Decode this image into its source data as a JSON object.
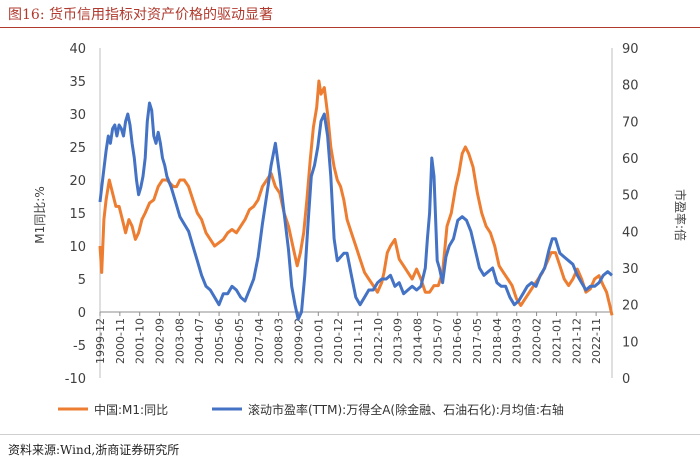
{
  "figure": {
    "title": "图16:  货币信用指标对资产价格的驱动显著",
    "source": "资料来源:Wind,浙商证券研究所"
  },
  "colors": {
    "m1": "#ED7D31",
    "pe": "#4472C4",
    "title": "#b03a2e",
    "axis": "#595959"
  },
  "chart_data": {
    "type": "line",
    "title": "",
    "ylabel": "M1同比:%",
    "y2label": "市盈率:倍",
    "ylim": [
      -10,
      40
    ],
    "y2lim": [
      0,
      90
    ],
    "yticks": [
      "-10",
      "-5",
      "0",
      "5",
      "10",
      "15",
      "20",
      "25",
      "30",
      "35",
      "40"
    ],
    "y2ticks": [
      "0",
      "10",
      "20",
      "30",
      "40",
      "50",
      "60",
      "70",
      "80",
      "90"
    ],
    "xlim": [
      1999.92,
      2023.5
    ],
    "xtick_labels": [
      "1999-12",
      "2000-11",
      "2001-10",
      "2002-09",
      "2003-08",
      "2004-07",
      "2005-06",
      "2006-05",
      "2007-04",
      "2008-03",
      "2009-02",
      "2010-01",
      "2010-12",
      "2011-11",
      "2012-10",
      "2013-09",
      "2014-08",
      "2015-07",
      "2016-06",
      "2017-05",
      "2018-04",
      "2019-03",
      "2020-02",
      "2021-01",
      "2021-12",
      "2022-11"
    ],
    "legend_position": "bottom",
    "series": [
      {
        "name": "中国:M1:同比",
        "axis": "left",
        "x": [
          1999.92,
          2000.0,
          2000.1,
          2000.2,
          2000.35,
          2000.5,
          2000.65,
          2000.8,
          2000.95,
          2001.1,
          2001.25,
          2001.4,
          2001.55,
          2001.7,
          2001.85,
          2002.0,
          2002.2,
          2002.4,
          2002.6,
          2002.8,
          2003.0,
          2003.15,
          2003.3,
          2003.45,
          2003.6,
          2003.8,
          2004.0,
          2004.2,
          2004.4,
          2004.6,
          2004.8,
          2005.0,
          2005.2,
          2005.4,
          2005.6,
          2005.8,
          2006.0,
          2006.2,
          2006.4,
          2006.6,
          2006.8,
          2007.0,
          2007.2,
          2007.4,
          2007.6,
          2007.8,
          2008.0,
          2008.2,
          2008.4,
          2008.6,
          2008.8,
          2009.0,
          2009.15,
          2009.3,
          2009.45,
          2009.6,
          2009.75,
          2009.9,
          2010.0,
          2010.1,
          2010.25,
          2010.4,
          2010.55,
          2010.7,
          2010.85,
          2011.0,
          2011.15,
          2011.3,
          2011.5,
          2011.7,
          2011.9,
          2012.1,
          2012.3,
          2012.5,
          2012.7,
          2012.9,
          2013.0,
          2013.15,
          2013.3,
          2013.5,
          2013.7,
          2013.9,
          2014.1,
          2014.3,
          2014.5,
          2014.7,
          2014.9,
          2015.1,
          2015.3,
          2015.5,
          2015.7,
          2015.9,
          2016.1,
          2016.3,
          2016.45,
          2016.6,
          2016.75,
          2016.9,
          2017.1,
          2017.3,
          2017.5,
          2017.7,
          2017.9,
          2018.1,
          2018.3,
          2018.5,
          2018.7,
          2018.9,
          2019.1,
          2019.3,
          2019.5,
          2019.7,
          2019.9,
          2020.1,
          2020.3,
          2020.5,
          2020.7,
          2020.9,
          2021.1,
          2021.3,
          2021.5,
          2021.7,
          2021.9,
          2022.1,
          2022.3,
          2022.5,
          2022.7,
          2022.9,
          2023.1,
          2023.25,
          2023.4,
          2023.5
        ],
        "values": [
          10,
          6,
          14,
          17,
          20,
          18,
          16,
          16,
          14,
          12,
          14,
          13,
          11,
          12,
          14,
          15,
          16.5,
          17,
          19,
          20,
          20,
          19.5,
          19,
          19,
          20,
          20,
          19,
          17,
          15,
          14,
          12,
          11,
          10,
          10.5,
          11,
          12,
          12.5,
          12,
          13,
          14,
          15.5,
          16,
          17,
          19,
          20,
          21,
          19,
          18,
          15,
          13,
          10,
          7,
          9,
          12,
          17,
          23,
          28,
          31,
          35,
          33,
          34,
          30,
          25,
          22,
          20,
          19,
          17,
          14,
          12,
          10,
          8,
          6,
          5,
          4,
          3,
          4.5,
          6,
          9,
          10,
          11,
          8,
          7,
          6,
          5,
          6.5,
          5,
          3,
          3,
          4,
          4,
          6,
          13,
          15,
          19,
          21,
          24,
          25,
          24,
          22,
          18,
          15,
          13,
          12,
          10,
          7,
          6,
          5,
          4,
          2,
          1,
          2,
          3,
          4,
          5,
          6,
          7.5,
          9,
          9,
          7,
          5,
          4,
          5,
          6.5,
          5,
          3,
          3.5,
          5,
          5.5,
          4,
          3,
          1,
          -0.5
        ]
      },
      {
        "name": "滚动市盈率(TTM):万得全A(除金融、石油石化):月均值:右轴",
        "axis": "right",
        "x": [
          1999.92,
          2000.0,
          2000.1,
          2000.2,
          2000.3,
          2000.4,
          2000.5,
          2000.6,
          2000.7,
          2000.8,
          2000.9,
          2001.0,
          2001.1,
          2001.2,
          2001.3,
          2001.4,
          2001.5,
          2001.6,
          2001.7,
          2001.8,
          2001.9,
          2002.0,
          2002.1,
          2002.2,
          2002.3,
          2002.4,
          2002.5,
          2002.6,
          2002.7,
          2002.8,
          2002.9,
          2003.0,
          2003.2,
          2003.4,
          2003.6,
          2003.8,
          2004.0,
          2004.2,
          2004.4,
          2004.6,
          2004.8,
          2005.0,
          2005.2,
          2005.4,
          2005.6,
          2005.8,
          2006.0,
          2006.2,
          2006.4,
          2006.6,
          2006.8,
          2007.0,
          2007.2,
          2007.4,
          2007.6,
          2007.8,
          2008.0,
          2008.2,
          2008.4,
          2008.6,
          2008.75,
          2008.9,
          2009.05,
          2009.2,
          2009.35,
          2009.5,
          2009.65,
          2009.8,
          2009.95,
          2010.1,
          2010.25,
          2010.4,
          2010.55,
          2010.7,
          2010.85,
          2011.0,
          2011.15,
          2011.3,
          2011.5,
          2011.7,
          2011.9,
          2012.1,
          2012.3,
          2012.5,
          2012.7,
          2012.9,
          2013.1,
          2013.3,
          2013.5,
          2013.7,
          2013.9,
          2014.1,
          2014.3,
          2014.5,
          2014.7,
          2014.9,
          2015.0,
          2015.1,
          2015.2,
          2015.3,
          2015.45,
          2015.55,
          2015.7,
          2015.85,
          2016.0,
          2016.2,
          2016.4,
          2016.6,
          2016.8,
          2017.0,
          2017.2,
          2017.4,
          2017.6,
          2017.8,
          2018.0,
          2018.2,
          2018.4,
          2018.6,
          2018.8,
          2019.0,
          2019.2,
          2019.4,
          2019.6,
          2019.8,
          2020.0,
          2020.2,
          2020.4,
          2020.6,
          2020.75,
          2020.9,
          2021.1,
          2021.3,
          2021.5,
          2021.7,
          2021.9,
          2022.1,
          2022.3,
          2022.5,
          2022.7,
          2022.9,
          2023.1,
          2023.3,
          2023.5
        ],
        "values": [
          48,
          52,
          57,
          62,
          66,
          64,
          68,
          69,
          66,
          69,
          68,
          66,
          70,
          72,
          69,
          64,
          60,
          54,
          50,
          52,
          55,
          60,
          70,
          75,
          73,
          66,
          64,
          67,
          64,
          60,
          58,
          55,
          52,
          48,
          44,
          42,
          40,
          36,
          32,
          28,
          25,
          24,
          22,
          20,
          23,
          23,
          25,
          24,
          22,
          21,
          24,
          27,
          33,
          42,
          50,
          58,
          64,
          55,
          45,
          35,
          25,
          20,
          16,
          18,
          28,
          42,
          55,
          58,
          63,
          70,
          72,
          66,
          55,
          38,
          32,
          33,
          34,
          34,
          28,
          22,
          20,
          22,
          24,
          24,
          26,
          27,
          27,
          28,
          25,
          26,
          23,
          24,
          25,
          24,
          25,
          30,
          38,
          45,
          60,
          55,
          32,
          30,
          26,
          33,
          36,
          38,
          43,
          44,
          43,
          40,
          35,
          30,
          28,
          29,
          30,
          26,
          25,
          25,
          22,
          20,
          21,
          23,
          25,
          26,
          25,
          28,
          30,
          35,
          38,
          38,
          34,
          33,
          32,
          31,
          28,
          26,
          24,
          25,
          25,
          26,
          28,
          29,
          28
        ]
      }
    ]
  }
}
